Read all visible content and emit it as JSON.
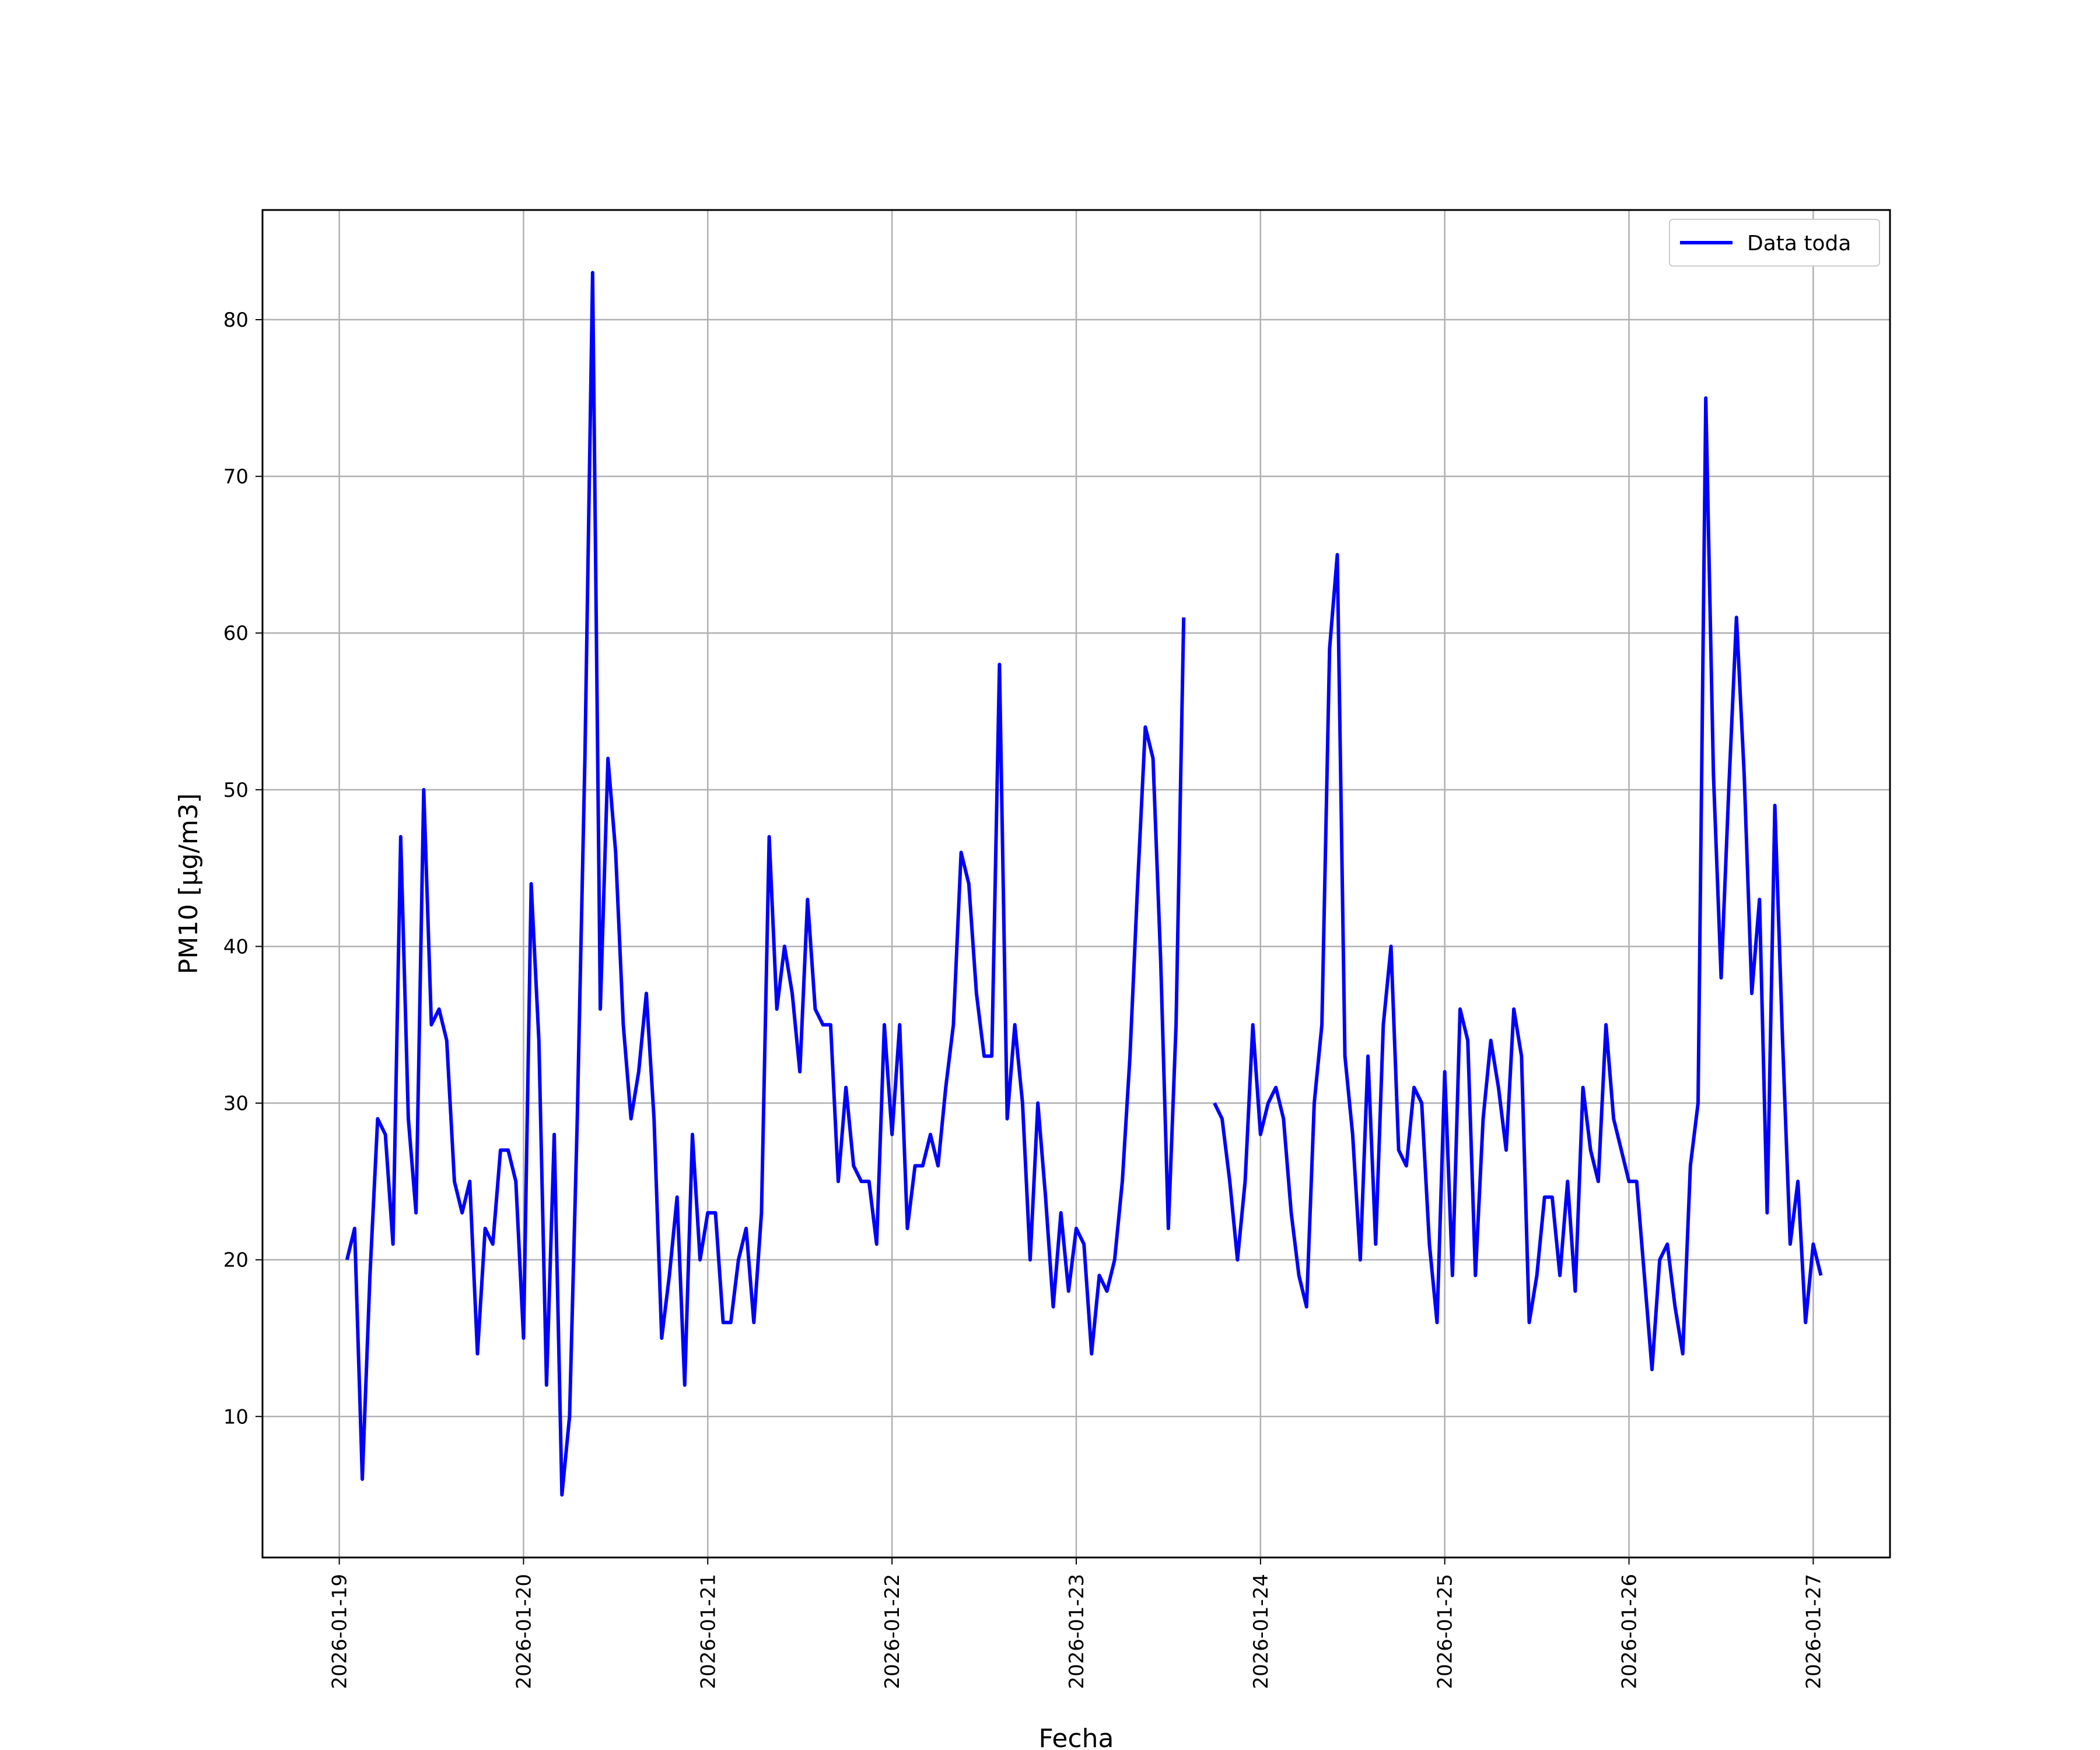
{
  "chart_data": {
    "type": "line",
    "title": "",
    "xlabel": "Fecha",
    "ylabel": "PM10 [μg/m3]",
    "ylim": [
      1,
      87
    ],
    "yticks": [
      10,
      20,
      30,
      40,
      50,
      60,
      70,
      80
    ],
    "xlim": [
      "2026-01-18 14:00",
      "2026-01-27 10:00"
    ],
    "xticks": [
      "2026-01-19",
      "2026-01-20",
      "2026-01-21",
      "2026-01-22",
      "2026-01-23",
      "2026-01-24",
      "2026-01-25",
      "2026-01-26",
      "2026-01-27"
    ],
    "grid": true,
    "legend": {
      "position": "top-right"
    },
    "x_start": "2026-01-19 01:00",
    "x_step_hours": 1,
    "series": [
      {
        "name": "Data toda",
        "color": "#0000ff",
        "values": [
          20,
          22,
          6,
          19,
          29,
          28,
          21,
          47,
          29,
          23,
          50,
          35,
          36,
          34,
          25,
          23,
          25,
          14,
          22,
          21,
          27,
          27,
          25,
          15,
          44,
          34,
          12,
          28,
          5,
          10,
          29,
          52,
          83,
          36,
          52,
          46,
          35,
          29,
          32,
          37,
          29,
          15,
          19,
          24,
          12,
          28,
          20,
          23,
          23,
          16,
          16,
          20,
          22,
          16,
          23,
          47,
          36,
          40,
          37,
          32,
          43,
          36,
          35,
          35,
          25,
          31,
          26,
          25,
          25,
          21,
          35,
          28,
          35,
          22,
          26,
          26,
          28,
          26,
          31,
          35,
          46,
          44,
          37,
          33,
          33,
          58,
          29,
          35,
          30,
          20,
          30,
          24,
          17,
          23,
          18,
          22,
          21,
          14,
          19,
          18,
          20,
          25,
          33,
          44,
          54,
          52,
          39,
          22,
          35,
          61,
          null,
          null,
          null,
          30,
          29,
          25,
          20,
          25,
          35,
          28,
          30,
          31,
          29,
          23,
          19,
          17,
          30,
          35,
          59,
          65,
          33,
          28,
          20,
          33,
          21,
          35,
          40,
          27,
          26,
          31,
          30,
          21,
          16,
          32,
          19,
          36,
          34,
          19,
          29,
          34,
          31,
          27,
          36,
          33,
          16,
          19,
          24,
          24,
          19,
          25,
          18,
          31,
          27,
          25,
          35,
          29,
          27,
          25,
          25,
          19,
          13,
          20,
          21,
          17,
          14,
          26,
          30,
          75,
          51,
          38,
          50,
          61,
          51,
          37,
          43,
          23,
          49,
          34,
          21,
          25,
          16,
          21,
          19
        ]
      }
    ]
  }
}
